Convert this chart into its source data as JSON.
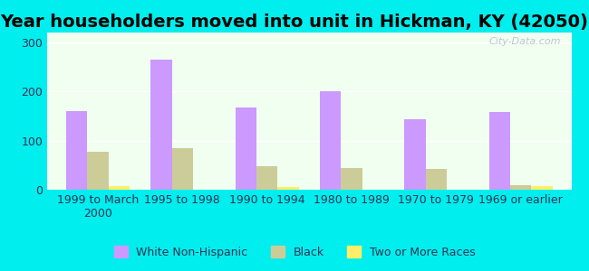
{
  "title": "Year householders moved into unit in Hickman, KY (42050)",
  "categories": [
    "1999 to March\n2000",
    "1995 to 1998",
    "1990 to 1994",
    "1980 to 1989",
    "1970 to 1979",
    "1969 or earlier"
  ],
  "white_non_hispanic": [
    160,
    265,
    168,
    200,
    143,
    158
  ],
  "black": [
    77,
    85,
    47,
    45,
    42,
    10
  ],
  "two_or_more": [
    8,
    0,
    6,
    0,
    0,
    8
  ],
  "bar_colors": {
    "white_non_hispanic": "#cc99ff",
    "black": "#cccc99",
    "two_or_more": "#ffee66"
  },
  "background_color": "#00EEEE",
  "plot_bg": "#f0fff0",
  "ylim": [
    0,
    320
  ],
  "yticks": [
    0,
    100,
    200,
    300
  ],
  "bar_width": 0.25,
  "legend_labels": [
    "White Non-Hispanic",
    "Black",
    "Two or More Races"
  ],
  "watermark": "City-Data.com",
  "title_fontsize": 14,
  "tick_fontsize": 9
}
